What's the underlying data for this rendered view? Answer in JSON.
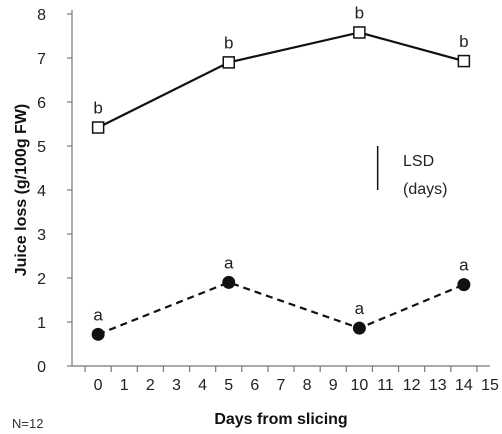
{
  "chart_data": {
    "type": "line",
    "xlabel": "Days from slicing",
    "ylabel": "Juice loss (g/100g FW)",
    "xlim": [
      -1,
      15
    ],
    "ylim": [
      0,
      8
    ],
    "x_ticks": [
      0,
      1,
      2,
      3,
      4,
      5,
      6,
      7,
      8,
      9,
      10,
      11,
      12,
      13,
      14,
      15
    ],
    "y_ticks": [
      0,
      1,
      2,
      3,
      4,
      5,
      6,
      7,
      8
    ],
    "grid": false,
    "series": [
      {
        "x": [
          0,
          5,
          10,
          14
        ],
        "y": [
          5.42,
          6.9,
          7.58,
          6.93
        ],
        "labels": [
          "b",
          "b",
          "b",
          "b"
        ],
        "line_style": "solid",
        "marker": "open-square",
        "color": "#111111"
      },
      {
        "x": [
          0,
          5,
          10,
          14
        ],
        "y": [
          0.72,
          1.9,
          0.86,
          1.85
        ],
        "labels": [
          "a",
          "a",
          "a",
          "a"
        ],
        "line_style": "dashed",
        "marker": "filled-circle",
        "color": "#111111"
      }
    ],
    "lsd": {
      "label_line1": "LSD",
      "label_line2": "(days)",
      "x": 10.7,
      "y_low": 4.0,
      "y_high": 5.0
    },
    "note": "N=12"
  }
}
